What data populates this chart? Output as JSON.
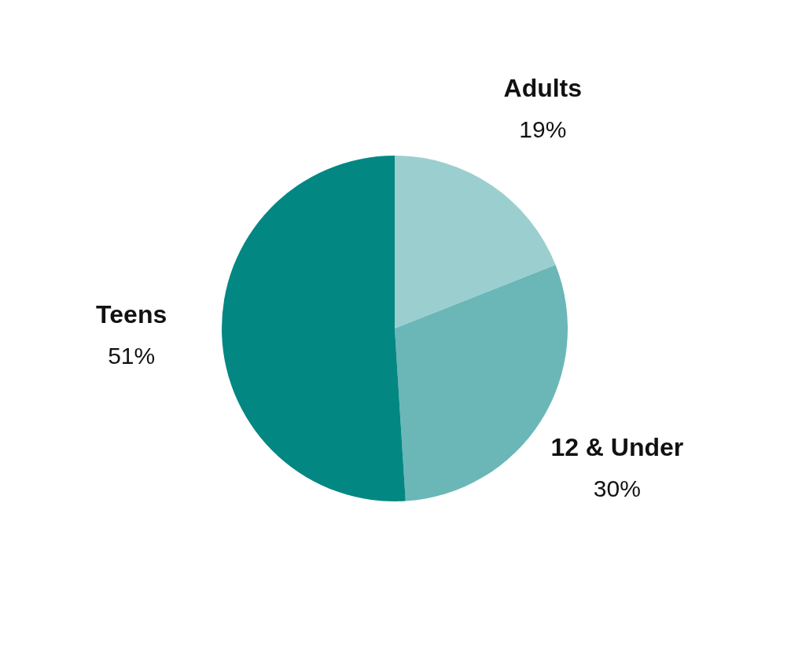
{
  "chart_data": {
    "type": "pie",
    "categories": [
      "Adults",
      "12 & Under",
      "Teens"
    ],
    "values": [
      19,
      30,
      51
    ],
    "colors": [
      "#9bcfcf",
      "#6bb7b8",
      "#038783"
    ],
    "value_labels": [
      "19%",
      "30%",
      "51%"
    ],
    "legend": false
  }
}
